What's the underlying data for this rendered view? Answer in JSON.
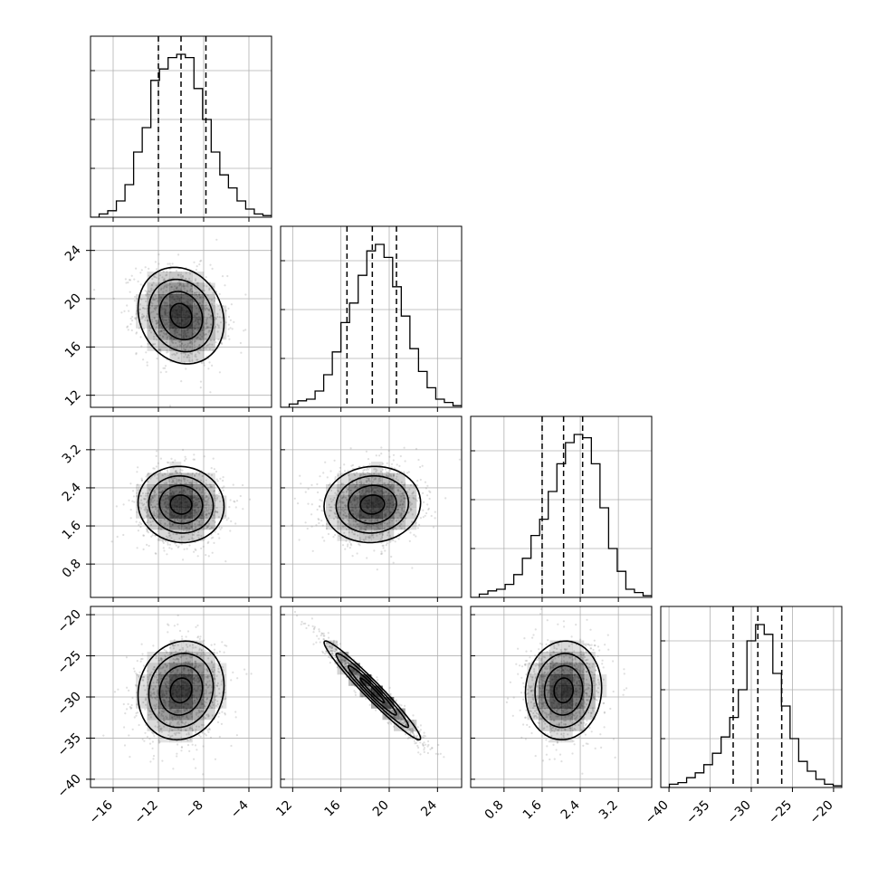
{
  "chart_data": {
    "type": "corner",
    "title": "",
    "grid": true,
    "quantile_lines": 3,
    "params": [
      {
        "range": [
          -18,
          -2
        ],
        "ticks": [
          -16,
          -12,
          -8,
          -4
        ],
        "tick_labels": [
          "−16",
          "−12",
          "−8",
          "−4"
        ],
        "mean": -10.0,
        "sd": 1.9
      },
      {
        "range": [
          11,
          26
        ],
        "ticks": [
          12,
          16,
          20,
          24
        ],
        "tick_labels": [
          "12",
          "16",
          "20",
          "24"
        ],
        "mean": 18.6,
        "sd": 2.0
      },
      {
        "range": [
          0.1,
          3.9
        ],
        "ticks": [
          0.8,
          1.6,
          2.4,
          3.2
        ],
        "tick_labels": [
          "0.8",
          "1.6",
          "2.4",
          "3.2"
        ],
        "mean": 2.05,
        "sd": 0.4
      },
      {
        "range": [
          -41,
          -19
        ],
        "ticks": [
          -40,
          -35,
          -30,
          -25,
          -20
        ],
        "tick_labels": [
          "−40",
          "−35",
          "−30",
          "−25",
          "−20"
        ],
        "mean": -29.2,
        "sd": 3.0
      }
    ],
    "quantiles": [
      [
        -12.0,
        -10.0,
        -7.8
      ],
      [
        16.5,
        18.6,
        20.6
      ],
      [
        1.6,
        2.05,
        2.45
      ],
      [
        -32.2,
        -29.2,
        -26.3
      ]
    ],
    "histograms": [
      [
        0.0,
        0.02,
        0.04,
        0.1,
        0.2,
        0.4,
        0.55,
        0.84,
        0.91,
        0.98,
        1.0,
        0.98,
        0.79,
        0.6,
        0.4,
        0.26,
        0.18,
        0.1,
        0.05,
        0.02,
        0.01
      ],
      [
        0.0,
        0.02,
        0.04,
        0.05,
        0.1,
        0.2,
        0.34,
        0.52,
        0.64,
        0.81,
        0.96,
        1.0,
        0.92,
        0.74,
        0.56,
        0.36,
        0.22,
        0.12,
        0.05,
        0.03,
        0.01
      ],
      [
        0.0,
        0.02,
        0.04,
        0.05,
        0.08,
        0.14,
        0.24,
        0.38,
        0.48,
        0.65,
        0.82,
        0.95,
        1.0,
        0.98,
        0.82,
        0.55,
        0.3,
        0.16,
        0.05,
        0.03,
        0.01
      ],
      [
        0.0,
        0.02,
        0.03,
        0.06,
        0.09,
        0.14,
        0.21,
        0.31,
        0.43,
        0.6,
        0.9,
        1.0,
        0.94,
        0.7,
        0.5,
        0.3,
        0.16,
        0.1,
        0.05,
        0.02,
        0.01
      ]
    ],
    "correlations": [
      [
        1,
        -0.15,
        -0.05,
        0.1
      ],
      [
        -0.15,
        1,
        0.05,
        -0.97
      ],
      [
        -0.05,
        0.05,
        1,
        0.05
      ],
      [
        0.1,
        -0.97,
        0.05,
        1
      ]
    ],
    "contour_levels_sigma": [
      0.5,
      1.0,
      1.5,
      2.0
    ]
  }
}
